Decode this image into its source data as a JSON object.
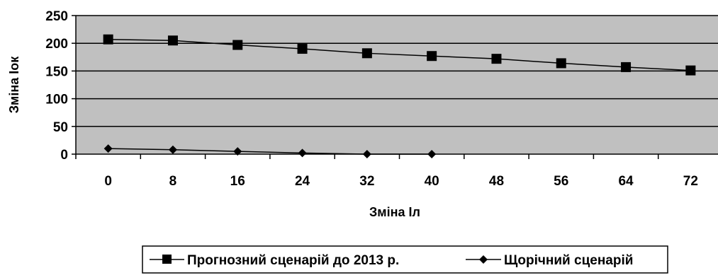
{
  "chart_data": {
    "type": "line",
    "title": "",
    "xlabel": "Зміна Іл",
    "ylabel": "Зміна Іок",
    "categories": [
      "0",
      "8",
      "16",
      "24",
      "32",
      "40",
      "48",
      "56",
      "64",
      "72"
    ],
    "ylim": [
      0,
      250
    ],
    "yticks": [
      "0",
      "50",
      "100",
      "150",
      "200",
      "250"
    ],
    "grid": true,
    "plot_background": "#c0c0c0",
    "legend_position": "bottom",
    "series": [
      {
        "name": "Прогнозний сценарій до 2013 р.",
        "marker": "square",
        "color": "#000000",
        "values": [
          207,
          205,
          197,
          190,
          182,
          177,
          172,
          164,
          157,
          151
        ]
      },
      {
        "name": "Щорічний сценарій",
        "marker": "diamond",
        "color": "#000000",
        "values": [
          10,
          8,
          5,
          2,
          0,
          0,
          null,
          null,
          null,
          null
        ]
      }
    ]
  }
}
